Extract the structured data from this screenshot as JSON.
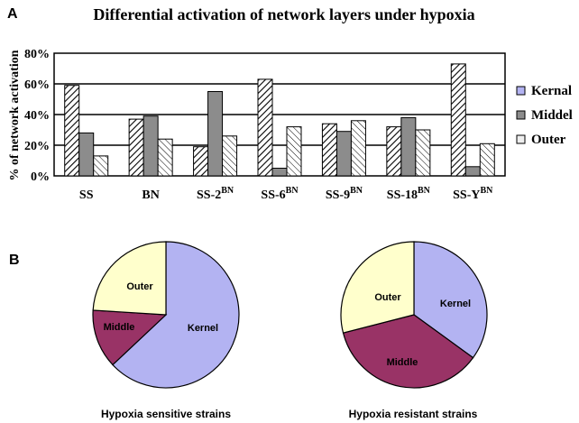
{
  "panels": {
    "a_label": "A",
    "b_label": "B"
  },
  "colors": {
    "kernel": "#b3b3f2",
    "middle": "#993366",
    "outer": "#ffffcc",
    "middle_bar": "#8c8c8c"
  },
  "chart_data": [
    {
      "type": "bar",
      "title": "Differential activation of network layers under hypoxia",
      "ylabel": "% of network activation",
      "xlabel": "",
      "ylim": [
        0,
        80
      ],
      "yticks": [
        "0%",
        "20%",
        "40%",
        "60%",
        "80%"
      ],
      "grid": true,
      "legend_position": "right",
      "categories": [
        {
          "base": "SS",
          "sup": ""
        },
        {
          "base": "BN",
          "sup": ""
        },
        {
          "base": "SS-2",
          "sup": "BN"
        },
        {
          "base": "SS-6",
          "sup": "BN"
        },
        {
          "base": "SS-9",
          "sup": "BN"
        },
        {
          "base": "SS-18",
          "sup": "BN"
        },
        {
          "base": "SS-Y",
          "sup": "BN"
        }
      ],
      "series": [
        {
          "name": "Kernal",
          "values": [
            59,
            37,
            19,
            63,
            34,
            32,
            73
          ]
        },
        {
          "name": "Middel",
          "values": [
            28,
            39,
            55,
            5,
            29,
            38,
            6
          ]
        },
        {
          "name": "Outer",
          "values": [
            13,
            24,
            26,
            32,
            36,
            30,
            21
          ]
        }
      ]
    },
    {
      "type": "pie",
      "caption": "Hypoxia sensitive strains",
      "slices": [
        {
          "label": "Kernel",
          "value": 63
        },
        {
          "label": "Middle",
          "value": 13
        },
        {
          "label": "Outer",
          "value": 24
        }
      ]
    },
    {
      "type": "pie",
      "caption": "Hypoxia resistant strains",
      "slices": [
        {
          "label": "Kernel",
          "value": 35
        },
        {
          "label": "Middle",
          "value": 36
        },
        {
          "label": "Outer",
          "value": 29
        }
      ]
    }
  ]
}
